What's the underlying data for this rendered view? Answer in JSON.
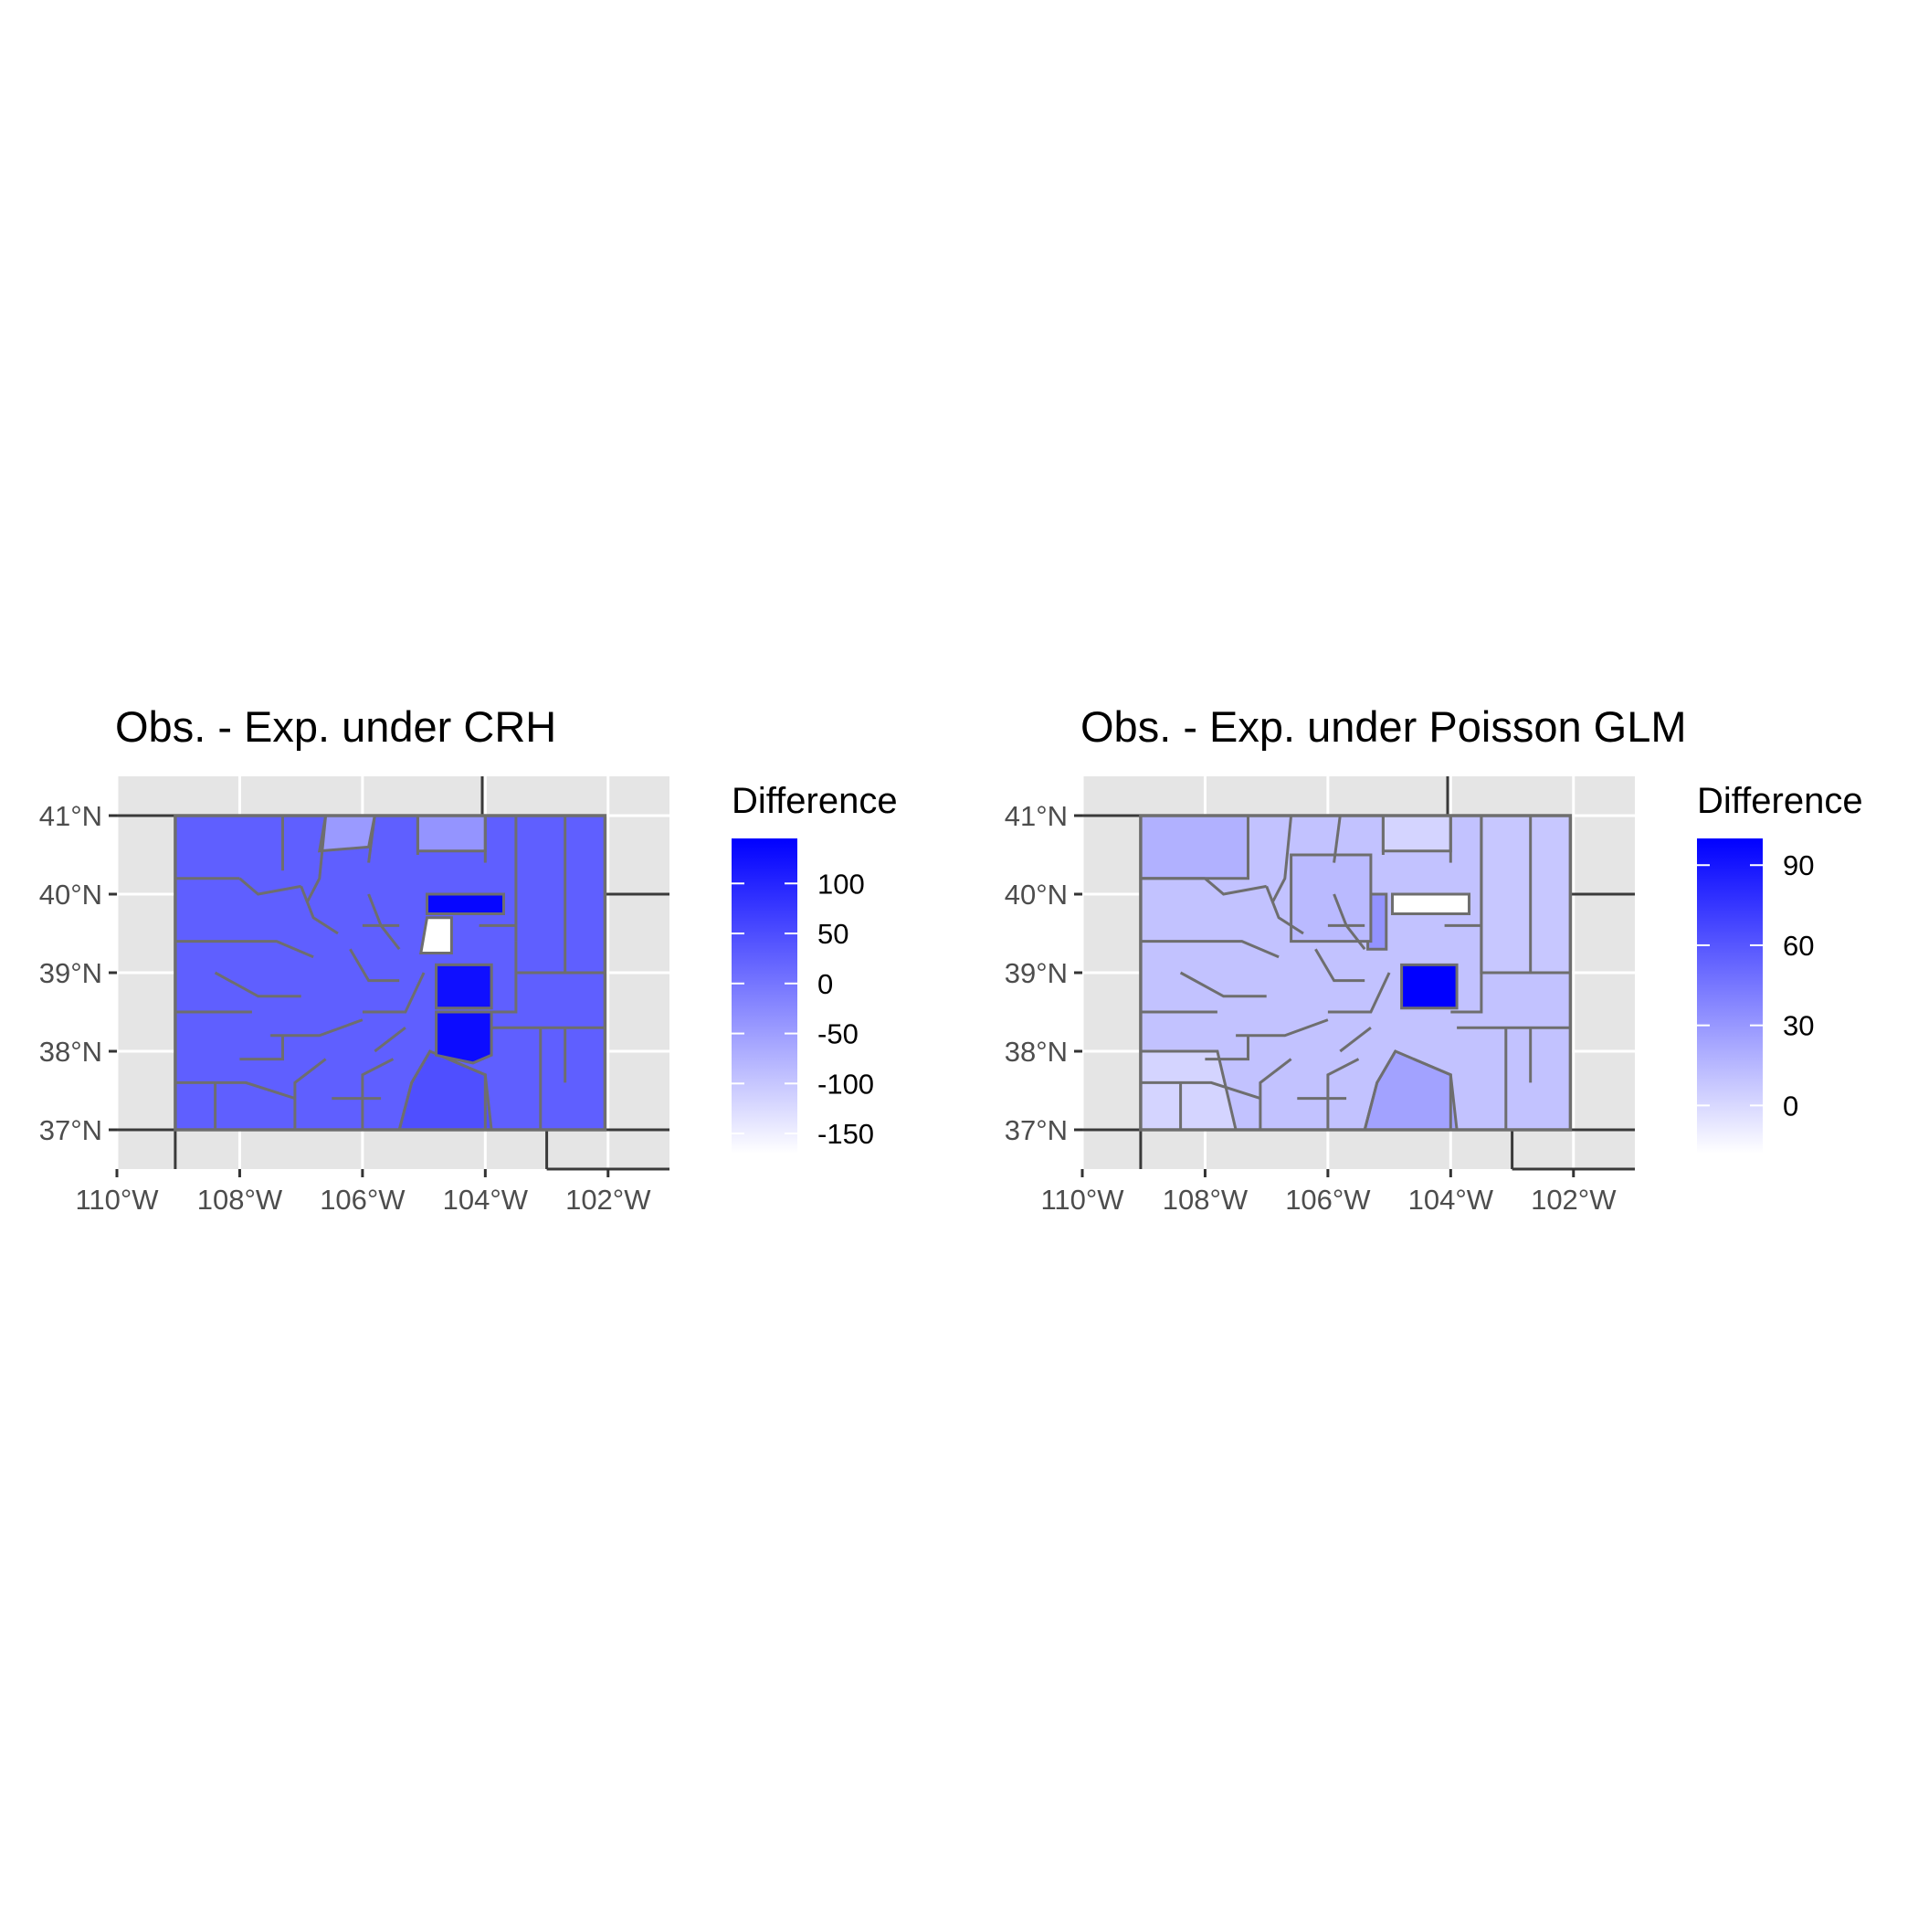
{
  "figure": {
    "panels": [
      {
        "id": "crh",
        "title": "Obs. - Exp. under CRH",
        "legend_title": "Difference",
        "legend_min": -170,
        "legend_max": 145,
        "legend_ticks": [
          {
            "value": 100,
            "label": "100"
          },
          {
            "value": 50,
            "label": "50"
          },
          {
            "value": 0,
            "label": "0"
          },
          {
            "value": -50,
            "label": "-50"
          },
          {
            "value": -100,
            "label": "-100"
          },
          {
            "value": -150,
            "label": "-150"
          }
        ],
        "background_value": 28,
        "regions": [
          {
            "name": "south-central",
            "value": 48
          },
          {
            "name": "north-center-light",
            "value": -38
          },
          {
            "name": "north-top-light",
            "value": -45
          },
          {
            "name": "denver-strip",
            "value": 138
          },
          {
            "name": "adams-area",
            "value": 122
          },
          {
            "name": "el-paso",
            "value": 126
          },
          {
            "name": "pueblo",
            "value": 130
          },
          {
            "name": "arapahoe-blank",
            "value": -170
          }
        ]
      },
      {
        "id": "poisson",
        "title": "Obs. - Exp. under Poisson GLM",
        "legend_title": "Difference",
        "legend_min": -18,
        "legend_max": 100,
        "legend_ticks": [
          {
            "value": 90,
            "label": "90"
          },
          {
            "value": 60,
            "label": "60"
          },
          {
            "value": 30,
            "label": "30"
          },
          {
            "value": 0,
            "label": "0"
          }
        ],
        "background_value": 10,
        "regions": [
          {
            "name": "northwest",
            "value": 18
          },
          {
            "name": "southwest-light",
            "value": 2
          },
          {
            "name": "south-central",
            "value": 25
          },
          {
            "name": "north-center-light",
            "value": 2
          },
          {
            "name": "jefferson-strip",
            "value": 32
          },
          {
            "name": "el-paso",
            "value": 100
          },
          {
            "name": "adams-blank",
            "value": -18
          },
          {
            "name": "east-band",
            "value": 8
          },
          {
            "name": "front-range",
            "value": 14
          }
        ]
      }
    ],
    "x_ticks": [
      {
        "lon": -110,
        "label": "110°W"
      },
      {
        "lon": -108,
        "label": "108°W"
      },
      {
        "lon": -106,
        "label": "106°W"
      },
      {
        "lon": -104,
        "label": "104°W"
      },
      {
        "lon": -102,
        "label": "102°W"
      }
    ],
    "y_ticks": [
      {
        "lat": 41,
        "label": "41°N"
      },
      {
        "lat": 40,
        "label": "40°N"
      },
      {
        "lat": 39,
        "label": "39°N"
      },
      {
        "lat": 38,
        "label": "38°N"
      },
      {
        "lat": 37,
        "label": "37°N"
      }
    ],
    "lon_range": [
      -110,
      -101
    ],
    "lat_range": [
      36.5,
      41.5
    ],
    "colors": {
      "low": "#ffffff",
      "high": "#0000ff",
      "panel_background": "#e5e5e5",
      "gridline": "#ffffff",
      "county_border": "#6e6e6e",
      "state_border": "#3a3a3a"
    }
  }
}
